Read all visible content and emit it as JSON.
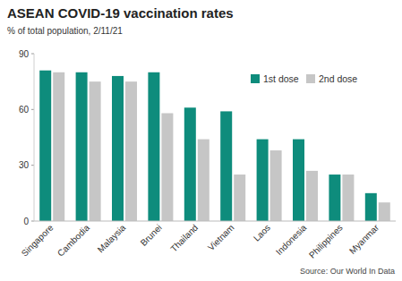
{
  "chart_data": {
    "type": "bar",
    "title": "ASEAN COVID-19 vaccination rates",
    "subtitle": "% of total population, 2/11/21",
    "source": "Source: Our World In Data",
    "categories": [
      "Singapore",
      "Cambodia",
      "Malaysia",
      "Brunei",
      "Thailand",
      "Vietnam",
      "Laos",
      "Indonesia",
      "Philippines",
      "Myanmar"
    ],
    "series": [
      {
        "name": "1st dose",
        "color": "#0e8c7c",
        "values": [
          81,
          80,
          78,
          80,
          61,
          59,
          44,
          44,
          25,
          15
        ]
      },
      {
        "name": "2nd dose",
        "color": "#c6c6c6",
        "values": [
          80,
          75,
          75,
          58,
          44,
          25,
          38,
          27,
          25,
          10
        ]
      }
    ],
    "ylim": [
      0,
      90
    ],
    "yticks": [
      0,
      30,
      60,
      90
    ],
    "grid": false,
    "legend": "top-right"
  }
}
